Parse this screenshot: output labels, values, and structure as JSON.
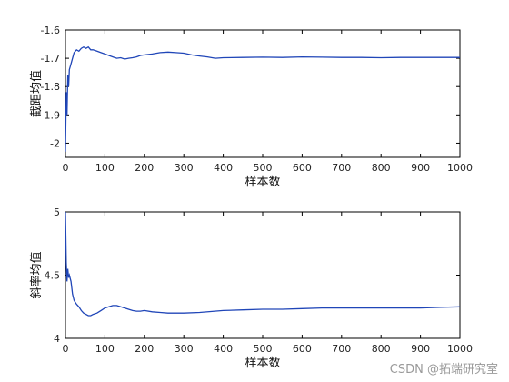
{
  "chart_data": [
    {
      "type": "line",
      "xlabel": "样本数",
      "ylabel": "截距均值",
      "xlim": [
        0,
        1000
      ],
      "ylim": [
        -2.05,
        -1.6
      ],
      "xticks": [
        0,
        100,
        200,
        300,
        400,
        500,
        600,
        700,
        800,
        900,
        1000
      ],
      "yticks": [
        -1.6,
        -1.7,
        -1.8,
        -1.9,
        -2
      ],
      "ytick_labels": [
        "-1.6",
        "-1.7",
        "-1.8",
        "-1.9",
        "-2"
      ],
      "color": "#2046b8",
      "series": [
        {
          "x": [
            0,
            2,
            4,
            6,
            8,
            10,
            14,
            18,
            22,
            28,
            34,
            40,
            46,
            52,
            58,
            64,
            70,
            80,
            90,
            100,
            110,
            120,
            130,
            140,
            150,
            160,
            170,
            180,
            190,
            200,
            220,
            240,
            260,
            280,
            300,
            320,
            340,
            360,
            380,
            400,
            450,
            500,
            550,
            600,
            650,
            700,
            750,
            800,
            850,
            900,
            950,
            1000
          ],
          "y": [
            -2.03,
            -1.82,
            -1.9,
            -1.76,
            -1.8,
            -1.74,
            -1.72,
            -1.7,
            -1.68,
            -1.67,
            -1.675,
            -1.665,
            -1.66,
            -1.665,
            -1.66,
            -1.67,
            -1.67,
            -1.675,
            -1.68,
            -1.685,
            -1.69,
            -1.695,
            -1.7,
            -1.698,
            -1.703,
            -1.7,
            -1.698,
            -1.695,
            -1.69,
            -1.688,
            -1.685,
            -1.68,
            -1.678,
            -1.68,
            -1.682,
            -1.688,
            -1.692,
            -1.695,
            -1.7,
            -1.698,
            -1.697,
            -1.696,
            -1.697,
            -1.695,
            -1.696,
            -1.697,
            -1.697,
            -1.698,
            -1.697,
            -1.697,
            -1.697,
            -1.697
          ]
        }
      ]
    },
    {
      "type": "line",
      "xlabel": "样本数",
      "ylabel": "斜率均值",
      "xlim": [
        0,
        1000
      ],
      "ylim": [
        4,
        5
      ],
      "xticks": [
        0,
        100,
        200,
        300,
        400,
        500,
        600,
        700,
        800,
        900,
        1000
      ],
      "yticks": [
        4,
        4.5,
        5
      ],
      "ytick_labels": [
        "4",
        "4.5",
        "5"
      ],
      "color": "#2046b8",
      "series": [
        {
          "x": [
            0,
            2,
            4,
            6,
            8,
            10,
            14,
            18,
            22,
            28,
            34,
            40,
            46,
            52,
            58,
            64,
            70,
            80,
            90,
            100,
            110,
            120,
            130,
            140,
            150,
            160,
            170,
            180,
            190,
            200,
            220,
            240,
            260,
            280,
            300,
            340,
            400,
            450,
            500,
            550,
            600,
            650,
            700,
            750,
            800,
            850,
            900,
            950,
            1000
          ],
          "y": [
            5.0,
            4.6,
            4.45,
            4.55,
            4.48,
            4.5,
            4.45,
            4.35,
            4.3,
            4.27,
            4.25,
            4.22,
            4.2,
            4.19,
            4.18,
            4.18,
            4.19,
            4.2,
            4.22,
            4.24,
            4.25,
            4.26,
            4.26,
            4.25,
            4.24,
            4.23,
            4.22,
            4.215,
            4.215,
            4.22,
            4.21,
            4.205,
            4.2,
            4.2,
            4.2,
            4.205,
            4.22,
            4.225,
            4.23,
            4.23,
            4.235,
            4.24,
            4.24,
            4.24,
            4.24,
            4.24,
            4.24,
            4.245,
            4.25
          ]
        }
      ]
    }
  ],
  "watermark": "CSDN @拓端研究室"
}
